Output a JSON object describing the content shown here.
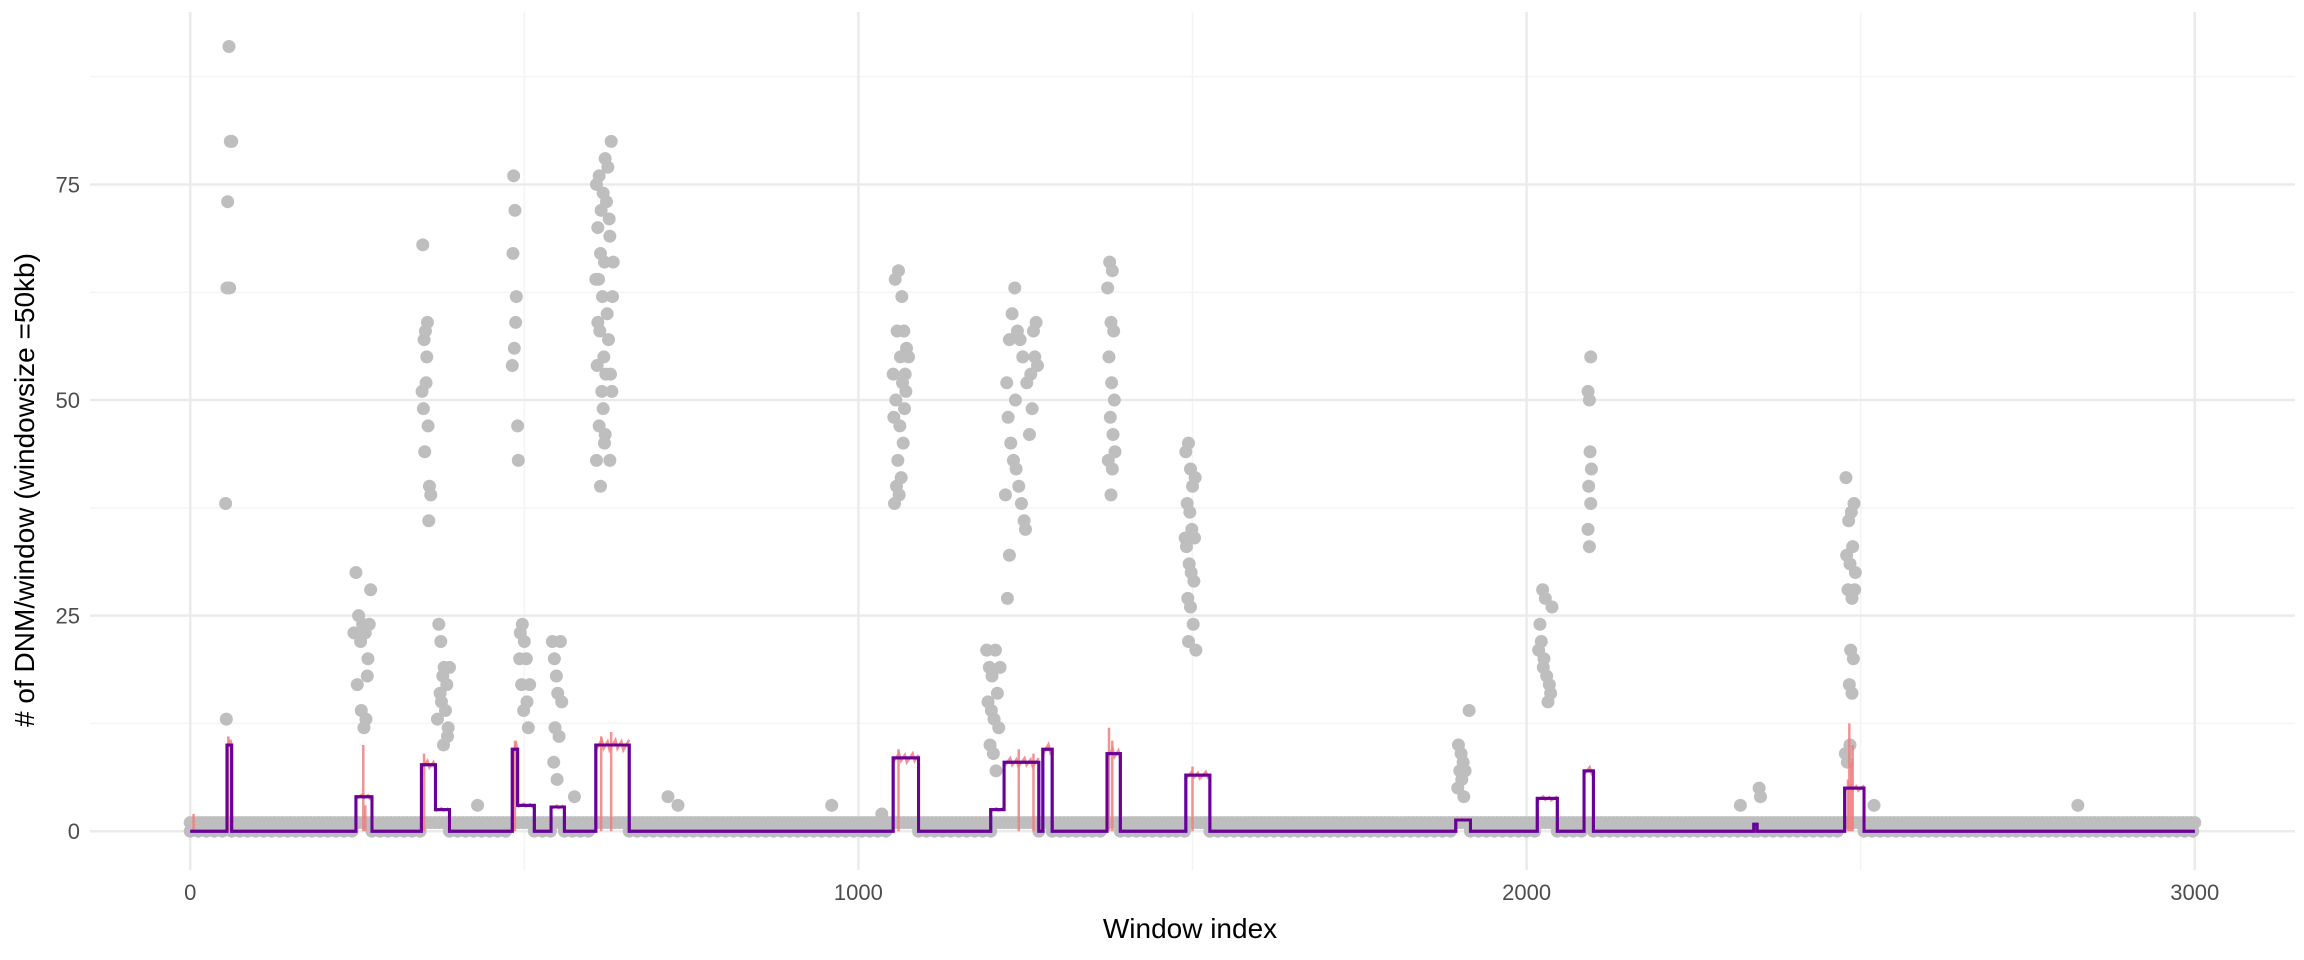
{
  "chart_data": {
    "type": "scatter",
    "title": "",
    "xlabel": "Window index",
    "ylabel": "# of DNM/window (windowsize =50kb)",
    "xlim": [
      -150,
      3150
    ],
    "ylim": [
      -4.5,
      95
    ],
    "x_ticks": [
      0,
      1000,
      2000,
      3000
    ],
    "x_tick_labels": [
      "0",
      "1000",
      "2000",
      "3000"
    ],
    "y_ticks": [
      0,
      25,
      50,
      75
    ],
    "y_tick_labels": [
      "0",
      "25",
      "50",
      "75"
    ],
    "x_minor_ticks": [
      500,
      1500,
      2500
    ],
    "y_minor_ticks": [
      12.5,
      37.5,
      62.5,
      87.5
    ],
    "grid": true,
    "legend": "none",
    "colors": {
      "points": "#bebebe",
      "raw_line": "#f08080",
      "segment_blue": "#0000ff",
      "segment_purple": "#800080",
      "grid_major": "#ebebeb",
      "grid_minor": "#f4f4f4"
    },
    "baseline_points": {
      "x_start": 0,
      "x_end": 3000,
      "value": 1
    },
    "elevated_points": [
      {
        "x": 58,
        "y": 91
      },
      {
        "x": 60,
        "y": 80
      },
      {
        "x": 56,
        "y": 73
      },
      {
        "x": 55,
        "y": 63
      },
      {
        "x": 59,
        "y": 63
      },
      {
        "x": 53,
        "y": 38
      },
      {
        "x": 54,
        "y": 13
      },
      {
        "x": 62,
        "y": 80
      },
      {
        "x": 248,
        "y": 30
      },
      {
        "x": 252,
        "y": 25
      },
      {
        "x": 255,
        "y": 22
      },
      {
        "x": 258,
        "y": 24
      },
      {
        "x": 262,
        "y": 23
      },
      {
        "x": 266,
        "y": 20
      },
      {
        "x": 250,
        "y": 17
      },
      {
        "x": 256,
        "y": 14
      },
      {
        "x": 260,
        "y": 12
      },
      {
        "x": 265,
        "y": 18
      },
      {
        "x": 270,
        "y": 28
      },
      {
        "x": 245,
        "y": 23
      },
      {
        "x": 268,
        "y": 24
      },
      {
        "x": 263,
        "y": 13
      },
      {
        "x": 348,
        "y": 68
      },
      {
        "x": 352,
        "y": 58
      },
      {
        "x": 355,
        "y": 59
      },
      {
        "x": 350,
        "y": 57
      },
      {
        "x": 347,
        "y": 51
      },
      {
        "x": 353,
        "y": 52
      },
      {
        "x": 349,
        "y": 49
      },
      {
        "x": 356,
        "y": 47
      },
      {
        "x": 351,
        "y": 44
      },
      {
        "x": 358,
        "y": 40
      },
      {
        "x": 360,
        "y": 39
      },
      {
        "x": 357,
        "y": 36
      },
      {
        "x": 354,
        "y": 55
      },
      {
        "x": 372,
        "y": 24
      },
      {
        "x": 375,
        "y": 22
      },
      {
        "x": 378,
        "y": 18
      },
      {
        "x": 380,
        "y": 19
      },
      {
        "x": 384,
        "y": 17
      },
      {
        "x": 376,
        "y": 15
      },
      {
        "x": 382,
        "y": 14
      },
      {
        "x": 386,
        "y": 12
      },
      {
        "x": 370,
        "y": 13
      },
      {
        "x": 388,
        "y": 19
      },
      {
        "x": 379,
        "y": 10
      },
      {
        "x": 374,
        "y": 16
      },
      {
        "x": 385,
        "y": 11
      },
      {
        "x": 484,
        "y": 76
      },
      {
        "x": 486,
        "y": 72
      },
      {
        "x": 483,
        "y": 67
      },
      {
        "x": 488,
        "y": 62
      },
      {
        "x": 487,
        "y": 59
      },
      {
        "x": 485,
        "y": 56
      },
      {
        "x": 482,
        "y": 54
      },
      {
        "x": 490,
        "y": 47
      },
      {
        "x": 491,
        "y": 43
      },
      {
        "x": 494,
        "y": 23
      },
      {
        "x": 497,
        "y": 24
      },
      {
        "x": 500,
        "y": 22
      },
      {
        "x": 503,
        "y": 20
      },
      {
        "x": 496,
        "y": 17
      },
      {
        "x": 504,
        "y": 15
      },
      {
        "x": 499,
        "y": 14
      },
      {
        "x": 506,
        "y": 12
      },
      {
        "x": 493,
        "y": 20
      },
      {
        "x": 508,
        "y": 17
      },
      {
        "x": 542,
        "y": 22
      },
      {
        "x": 545,
        "y": 20
      },
      {
        "x": 548,
        "y": 18
      },
      {
        "x": 550,
        "y": 16
      },
      {
        "x": 546,
        "y": 12
      },
      {
        "x": 552,
        "y": 11
      },
      {
        "x": 544,
        "y": 8
      },
      {
        "x": 549,
        "y": 6
      },
      {
        "x": 554,
        "y": 22
      },
      {
        "x": 556,
        "y": 15
      },
      {
        "x": 608,
        "y": 75
      },
      {
        "x": 612,
        "y": 76
      },
      {
        "x": 618,
        "y": 74
      },
      {
        "x": 621,
        "y": 78
      },
      {
        "x": 625,
        "y": 77
      },
      {
        "x": 630,
        "y": 80
      },
      {
        "x": 615,
        "y": 72
      },
      {
        "x": 623,
        "y": 73
      },
      {
        "x": 610,
        "y": 70
      },
      {
        "x": 627,
        "y": 71
      },
      {
        "x": 614,
        "y": 67
      },
      {
        "x": 620,
        "y": 66
      },
      {
        "x": 628,
        "y": 69
      },
      {
        "x": 607,
        "y": 64
      },
      {
        "x": 611,
        "y": 64
      },
      {
        "x": 617,
        "y": 62
      },
      {
        "x": 624,
        "y": 60
      },
      {
        "x": 632,
        "y": 62
      },
      {
        "x": 613,
        "y": 58
      },
      {
        "x": 619,
        "y": 55
      },
      {
        "x": 626,
        "y": 57
      },
      {
        "x": 609,
        "y": 54
      },
      {
        "x": 622,
        "y": 53
      },
      {
        "x": 616,
        "y": 51
      },
      {
        "x": 629,
        "y": 53
      },
      {
        "x": 631,
        "y": 51
      },
      {
        "x": 618,
        "y": 49
      },
      {
        "x": 612,
        "y": 47
      },
      {
        "x": 621,
        "y": 46
      },
      {
        "x": 620,
        "y": 45
      },
      {
        "x": 608,
        "y": 43
      },
      {
        "x": 628,
        "y": 43
      },
      {
        "x": 614,
        "y": 40
      },
      {
        "x": 633,
        "y": 66
      },
      {
        "x": 610,
        "y": 59
      },
      {
        "x": 1052,
        "y": 53
      },
      {
        "x": 1055,
        "y": 64
      },
      {
        "x": 1060,
        "y": 65
      },
      {
        "x": 1065,
        "y": 62
      },
      {
        "x": 1068,
        "y": 58
      },
      {
        "x": 1072,
        "y": 56
      },
      {
        "x": 1075,
        "y": 55
      },
      {
        "x": 1058,
        "y": 58
      },
      {
        "x": 1063,
        "y": 55
      },
      {
        "x": 1056,
        "y": 50
      },
      {
        "x": 1070,
        "y": 53
      },
      {
        "x": 1053,
        "y": 48
      },
      {
        "x": 1062,
        "y": 47
      },
      {
        "x": 1067,
        "y": 45
      },
      {
        "x": 1059,
        "y": 43
      },
      {
        "x": 1064,
        "y": 41
      },
      {
        "x": 1057,
        "y": 40
      },
      {
        "x": 1054,
        "y": 38
      },
      {
        "x": 1061,
        "y": 39
      },
      {
        "x": 1066,
        "y": 52
      },
      {
        "x": 1069,
        "y": 49
      },
      {
        "x": 1071,
        "y": 51
      },
      {
        "x": 1192,
        "y": 21
      },
      {
        "x": 1196,
        "y": 19
      },
      {
        "x": 1200,
        "y": 18
      },
      {
        "x": 1205,
        "y": 21
      },
      {
        "x": 1208,
        "y": 16
      },
      {
        "x": 1194,
        "y": 15
      },
      {
        "x": 1199,
        "y": 14
      },
      {
        "x": 1203,
        "y": 13
      },
      {
        "x": 1210,
        "y": 12
      },
      {
        "x": 1197,
        "y": 10
      },
      {
        "x": 1202,
        "y": 9
      },
      {
        "x": 1206,
        "y": 7
      },
      {
        "x": 1212,
        "y": 19
      },
      {
        "x": 1222,
        "y": 52
      },
      {
        "x": 1226,
        "y": 57
      },
      {
        "x": 1230,
        "y": 60
      },
      {
        "x": 1234,
        "y": 63
      },
      {
        "x": 1238,
        "y": 58
      },
      {
        "x": 1242,
        "y": 57
      },
      {
        "x": 1246,
        "y": 55
      },
      {
        "x": 1224,
        "y": 48
      },
      {
        "x": 1228,
        "y": 45
      },
      {
        "x": 1232,
        "y": 43
      },
      {
        "x": 1236,
        "y": 42
      },
      {
        "x": 1240,
        "y": 40
      },
      {
        "x": 1244,
        "y": 38
      },
      {
        "x": 1248,
        "y": 36
      },
      {
        "x": 1220,
        "y": 39
      },
      {
        "x": 1226,
        "y": 32
      },
      {
        "x": 1223,
        "y": 27
      },
      {
        "x": 1250,
        "y": 35
      },
      {
        "x": 1252,
        "y": 52
      },
      {
        "x": 1235,
        "y": 50
      },
      {
        "x": 1258,
        "y": 53
      },
      {
        "x": 1262,
        "y": 58
      },
      {
        "x": 1266,
        "y": 59
      },
      {
        "x": 1264,
        "y": 55
      },
      {
        "x": 1268,
        "y": 54
      },
      {
        "x": 1260,
        "y": 49
      },
      {
        "x": 1256,
        "y": 46
      },
      {
        "x": 1373,
        "y": 63
      },
      {
        "x": 1376,
        "y": 66
      },
      {
        "x": 1380,
        "y": 65
      },
      {
        "x": 1378,
        "y": 59
      },
      {
        "x": 1382,
        "y": 58
      },
      {
        "x": 1375,
        "y": 55
      },
      {
        "x": 1379,
        "y": 52
      },
      {
        "x": 1383,
        "y": 50
      },
      {
        "x": 1377,
        "y": 48
      },
      {
        "x": 1381,
        "y": 46
      },
      {
        "x": 1374,
        "y": 43
      },
      {
        "x": 1384,
        "y": 44
      },
      {
        "x": 1378,
        "y": 39
      },
      {
        "x": 1380,
        "y": 42
      },
      {
        "x": 1490,
        "y": 44
      },
      {
        "x": 1494,
        "y": 45
      },
      {
        "x": 1497,
        "y": 42
      },
      {
        "x": 1500,
        "y": 40
      },
      {
        "x": 1504,
        "y": 41
      },
      {
        "x": 1492,
        "y": 38
      },
      {
        "x": 1496,
        "y": 37
      },
      {
        "x": 1499,
        "y": 35
      },
      {
        "x": 1503,
        "y": 34
      },
      {
        "x": 1491,
        "y": 33
      },
      {
        "x": 1495,
        "y": 31
      },
      {
        "x": 1498,
        "y": 30
      },
      {
        "x": 1502,
        "y": 29
      },
      {
        "x": 1493,
        "y": 27
      },
      {
        "x": 1497,
        "y": 26
      },
      {
        "x": 1501,
        "y": 24
      },
      {
        "x": 1494,
        "y": 22
      },
      {
        "x": 1505,
        "y": 21
      },
      {
        "x": 1489,
        "y": 34
      },
      {
        "x": 1898,
        "y": 10
      },
      {
        "x": 1902,
        "y": 9
      },
      {
        "x": 1905,
        "y": 8
      },
      {
        "x": 1900,
        "y": 7
      },
      {
        "x": 1903,
        "y": 6
      },
      {
        "x": 1897,
        "y": 5
      },
      {
        "x": 1906,
        "y": 4
      },
      {
        "x": 1908,
        "y": 7
      },
      {
        "x": 1914,
        "y": 14
      },
      {
        "x": 2020,
        "y": 24
      },
      {
        "x": 2024,
        "y": 28
      },
      {
        "x": 2028,
        "y": 27
      },
      {
        "x": 2022,
        "y": 22
      },
      {
        "x": 2026,
        "y": 20
      },
      {
        "x": 2030,
        "y": 18
      },
      {
        "x": 2034,
        "y": 17
      },
      {
        "x": 2032,
        "y": 15
      },
      {
        "x": 2036,
        "y": 16
      },
      {
        "x": 2038,
        "y": 26
      },
      {
        "x": 2018,
        "y": 21
      },
      {
        "x": 2025,
        "y": 19
      },
      {
        "x": 2096,
        "y": 55
      },
      {
        "x": 2092,
        "y": 51
      },
      {
        "x": 2094,
        "y": 50
      },
      {
        "x": 2095,
        "y": 44
      },
      {
        "x": 2097,
        "y": 42
      },
      {
        "x": 2093,
        "y": 40
      },
      {
        "x": 2096,
        "y": 38
      },
      {
        "x": 2092,
        "y": 35
      },
      {
        "x": 2094,
        "y": 33
      },
      {
        "x": 2348,
        "y": 5
      },
      {
        "x": 2350,
        "y": 4
      },
      {
        "x": 2478,
        "y": 41
      },
      {
        "x": 2482,
        "y": 36
      },
      {
        "x": 2486,
        "y": 37
      },
      {
        "x": 2490,
        "y": 38
      },
      {
        "x": 2479,
        "y": 32
      },
      {
        "x": 2488,
        "y": 33
      },
      {
        "x": 2484,
        "y": 31
      },
      {
        "x": 2492,
        "y": 30
      },
      {
        "x": 2481,
        "y": 28
      },
      {
        "x": 2487,
        "y": 27
      },
      {
        "x": 2491,
        "y": 28
      },
      {
        "x": 2485,
        "y": 21
      },
      {
        "x": 2489,
        "y": 20
      },
      {
        "x": 2483,
        "y": 17
      },
      {
        "x": 2487,
        "y": 16
      },
      {
        "x": 2477,
        "y": 9
      },
      {
        "x": 2480,
        "y": 8
      },
      {
        "x": 2484,
        "y": 10
      },
      {
        "x": 2520,
        "y": 3
      },
      {
        "x": 2320,
        "y": 3
      },
      {
        "x": 2825,
        "y": 3
      },
      {
        "x": 960,
        "y": 3
      },
      {
        "x": 715,
        "y": 4
      },
      {
        "x": 730,
        "y": 3
      },
      {
        "x": 430,
        "y": 3
      },
      {
        "x": 575,
        "y": 4
      },
      {
        "x": 1035,
        "y": 2
      }
    ],
    "segments": [
      {
        "x0": 0,
        "x1": 55,
        "y": 0
      },
      {
        "x0": 55,
        "x1": 62,
        "y": 10
      },
      {
        "x0": 62,
        "x1": 248,
        "y": 0
      },
      {
        "x0": 248,
        "x1": 272,
        "y": 4
      },
      {
        "x0": 272,
        "x1": 346,
        "y": 0
      },
      {
        "x0": 346,
        "x1": 367,
        "y": 7.7
      },
      {
        "x0": 367,
        "x1": 388,
        "y": 2.5
      },
      {
        "x0": 388,
        "x1": 482,
        "y": 0
      },
      {
        "x0": 482,
        "x1": 490,
        "y": 9.5
      },
      {
        "x0": 490,
        "x1": 515,
        "y": 3
      },
      {
        "x0": 515,
        "x1": 540,
        "y": 0
      },
      {
        "x0": 540,
        "x1": 560,
        "y": 2.8
      },
      {
        "x0": 560,
        "x1": 607,
        "y": 0
      },
      {
        "x0": 607,
        "x1": 657,
        "y": 10
      },
      {
        "x0": 657,
        "x1": 1052,
        "y": 0
      },
      {
        "x0": 1052,
        "x1": 1090,
        "y": 8.5
      },
      {
        "x0": 1090,
        "x1": 1198,
        "y": 0
      },
      {
        "x0": 1198,
        "x1": 1218,
        "y": 2.5
      },
      {
        "x0": 1218,
        "x1": 1270,
        "y": 8
      },
      {
        "x0": 1270,
        "x1": 1276,
        "y": 0
      },
      {
        "x0": 1276,
        "x1": 1290,
        "y": 9.5
      },
      {
        "x0": 1290,
        "x1": 1372,
        "y": 0
      },
      {
        "x0": 1372,
        "x1": 1392,
        "y": 9
      },
      {
        "x0": 1392,
        "x1": 1490,
        "y": 0
      },
      {
        "x0": 1490,
        "x1": 1526,
        "y": 6.5
      },
      {
        "x0": 1526,
        "x1": 1894,
        "y": 0
      },
      {
        "x0": 1894,
        "x1": 1916,
        "y": 1.3
      },
      {
        "x0": 1916,
        "x1": 2016,
        "y": 0
      },
      {
        "x0": 2016,
        "x1": 2046,
        "y": 3.8
      },
      {
        "x0": 2046,
        "x1": 2086,
        "y": 0
      },
      {
        "x0": 2086,
        "x1": 2100,
        "y": 7
      },
      {
        "x0": 2100,
        "x1": 2340,
        "y": 0
      },
      {
        "x0": 2340,
        "x1": 2345,
        "y": 0.8
      },
      {
        "x0": 2345,
        "x1": 2476,
        "y": 0
      },
      {
        "x0": 2476,
        "x1": 2505,
        "y": 5
      },
      {
        "x0": 2505,
        "x1": 3000,
        "y": 0
      }
    ],
    "raw_spikes": [
      {
        "x": 5,
        "y": 2
      },
      {
        "x": 57,
        "y": 11
      },
      {
        "x": 259,
        "y": 10
      },
      {
        "x": 262,
        "y": 3
      },
      {
        "x": 350,
        "y": 9
      },
      {
        "x": 486,
        "y": 10.5
      },
      {
        "x": 615,
        "y": 11
      },
      {
        "x": 630,
        "y": 11.5
      },
      {
        "x": 1060,
        "y": 9.5
      },
      {
        "x": 1240,
        "y": 9.5
      },
      {
        "x": 1262,
        "y": 9
      },
      {
        "x": 1375,
        "y": 12
      },
      {
        "x": 1380,
        "y": 10.5
      },
      {
        "x": 1500,
        "y": 7.5
      },
      {
        "x": 2483,
        "y": 12.5
      },
      {
        "x": 2488,
        "y": 10
      },
      {
        "x": 2486,
        "y": 8
      },
      {
        "x": 2481,
        "y": 6
      }
    ]
  }
}
